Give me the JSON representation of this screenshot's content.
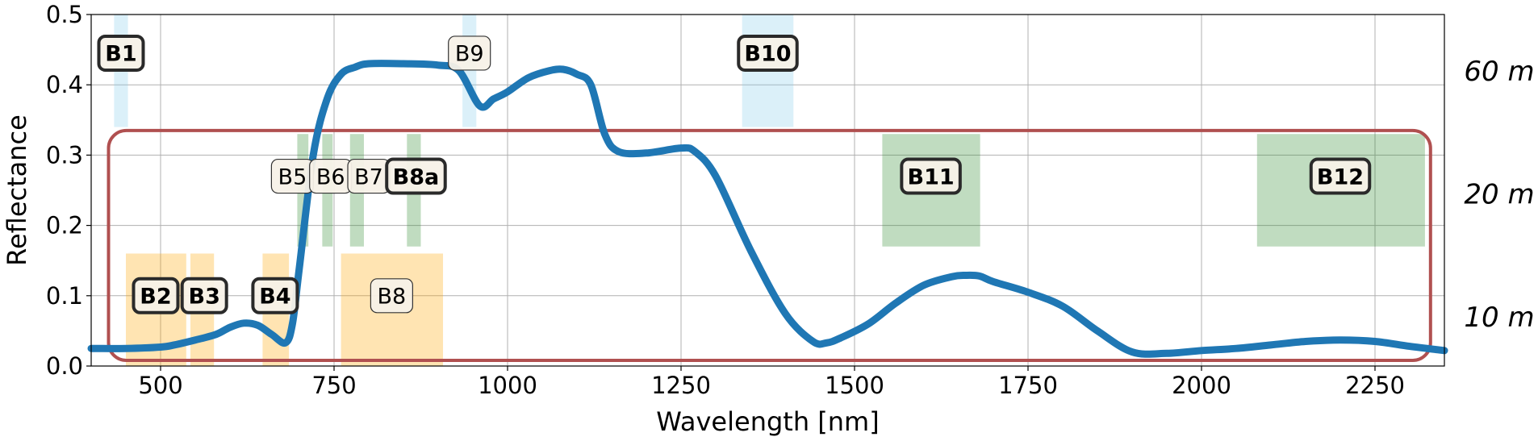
{
  "chart_data": {
    "type": "line",
    "title": "",
    "xlabel": "Wavelength [nm]",
    "ylabel": "Reflectance",
    "xlim": [
      400,
      2350
    ],
    "ylim": [
      0,
      0.5
    ],
    "grid": true,
    "xticks": [
      500,
      750,
      1000,
      1250,
      1500,
      1750,
      2000,
      2250
    ],
    "xtick_labels": [
      "500",
      "750",
      "1000",
      "1250",
      "1500",
      "1750",
      "2000",
      "2250"
    ],
    "yticks": [
      0.0,
      0.1,
      0.2,
      0.3,
      0.4,
      0.5
    ],
    "ytick_labels": [
      "0.0",
      "0.1",
      "0.2",
      "0.3",
      "0.4",
      "0.5"
    ],
    "series": [
      {
        "color": "#1f77b4",
        "x": [
          400,
          450,
          500,
          520,
          550,
          580,
          600,
          620,
          640,
          660,
          680,
          690,
          700,
          720,
          740,
          760,
          780,
          800,
          850,
          900,
          930,
          960,
          980,
          1000,
          1030,
          1060,
          1080,
          1100,
          1120,
          1140,
          1160,
          1200,
          1250,
          1270,
          1300,
          1350,
          1400,
          1440,
          1460,
          1480,
          1520,
          1560,
          1600,
          1640,
          1660,
          1680,
          1700,
          1750,
          1800,
          1850,
          1900,
          1950,
          2000,
          2050,
          2100,
          2150,
          2200,
          2250,
          2300,
          2350
        ],
        "y": [
          0.025,
          0.025,
          0.027,
          0.03,
          0.037,
          0.045,
          0.055,
          0.061,
          0.058,
          0.045,
          0.033,
          0.06,
          0.14,
          0.3,
          0.38,
          0.415,
          0.425,
          0.43,
          0.43,
          0.428,
          0.42,
          0.37,
          0.38,
          0.39,
          0.41,
          0.42,
          0.422,
          0.415,
          0.4,
          0.33,
          0.305,
          0.303,
          0.31,
          0.305,
          0.27,
          0.165,
          0.075,
          0.035,
          0.033,
          0.04,
          0.06,
          0.09,
          0.115,
          0.127,
          0.129,
          0.128,
          0.12,
          0.105,
          0.085,
          0.05,
          0.02,
          0.018,
          0.022,
          0.025,
          0.03,
          0.035,
          0.037,
          0.035,
          0.028,
          0.022
        ]
      }
    ],
    "bands": [
      {
        "name": "B1",
        "x0": 433,
        "x1": 453,
        "y0": 0.34,
        "y1": 0.5,
        "group": "60m",
        "bold": true,
        "label_x": 443,
        "label_y": 0.445
      },
      {
        "name": "B9",
        "x0": 935,
        "x1": 955,
        "y0": 0.34,
        "y1": 0.5,
        "group": "60m",
        "bold": false,
        "label_x": 945,
        "label_y": 0.445
      },
      {
        "name": "B10",
        "x0": 1338,
        "x1": 1412,
        "y0": 0.34,
        "y1": 0.5,
        "group": "60m",
        "bold": true,
        "label_x": 1375,
        "label_y": 0.445
      },
      {
        "name": "B5",
        "x0": 697,
        "x1": 713,
        "y0": 0.17,
        "y1": 0.33,
        "group": "20m",
        "bold": false,
        "label_x": 690,
        "label_y": 0.27
      },
      {
        "name": "B6",
        "x0": 733,
        "x1": 748,
        "y0": 0.17,
        "y1": 0.33,
        "group": "20m",
        "bold": false,
        "label_x": 745,
        "label_y": 0.27
      },
      {
        "name": "B7",
        "x0": 773,
        "x1": 793,
        "y0": 0.17,
        "y1": 0.33,
        "group": "20m",
        "bold": false,
        "label_x": 800,
        "label_y": 0.27
      },
      {
        "name": "B8a",
        "x0": 855,
        "x1": 875,
        "y0": 0.17,
        "y1": 0.33,
        "group": "20m",
        "bold": true,
        "label_x": 868,
        "label_y": 0.27
      },
      {
        "name": "B11",
        "x0": 1540,
        "x1": 1681,
        "y0": 0.17,
        "y1": 0.33,
        "group": "20m",
        "bold": true,
        "label_x": 1610,
        "label_y": 0.27
      },
      {
        "name": "B12",
        "x0": 2080,
        "x1": 2322,
        "y0": 0.17,
        "y1": 0.33,
        "group": "20m",
        "bold": true,
        "label_x": 2200,
        "label_y": 0.27
      },
      {
        "name": "B2",
        "x0": 450,
        "x1": 537,
        "y0": 0.0,
        "y1": 0.16,
        "group": "10m",
        "bold": true,
        "label_x": 493,
        "label_y": 0.1
      },
      {
        "name": "B3",
        "x0": 543,
        "x1": 577,
        "y0": 0.0,
        "y1": 0.16,
        "group": "10m",
        "bold": true,
        "label_x": 563,
        "label_y": 0.1
      },
      {
        "name": "B4",
        "x0": 647,
        "x1": 685,
        "y0": 0.0,
        "y1": 0.16,
        "group": "10m",
        "bold": true,
        "label_x": 665,
        "label_y": 0.1
      },
      {
        "name": "B8",
        "x0": 760,
        "x1": 907,
        "y0": 0.0,
        "y1": 0.16,
        "group": "10m",
        "bold": false,
        "label_x": 833,
        "label_y": 0.1
      }
    ],
    "band_colors": {
      "60m": "#87ceeb",
      "20m": "#2e8b2e",
      "10m": "#ffa500"
    },
    "resolution_labels": [
      {
        "text": "60 m",
        "y": 0.42
      },
      {
        "text": "20 m",
        "y": 0.245
      },
      {
        "text": "10 m",
        "y": 0.07
      }
    ],
    "highlight_box": {
      "x0": 425,
      "x1": 2330,
      "y0": 0.008,
      "y1": 0.335,
      "color": "#b05050"
    }
  }
}
